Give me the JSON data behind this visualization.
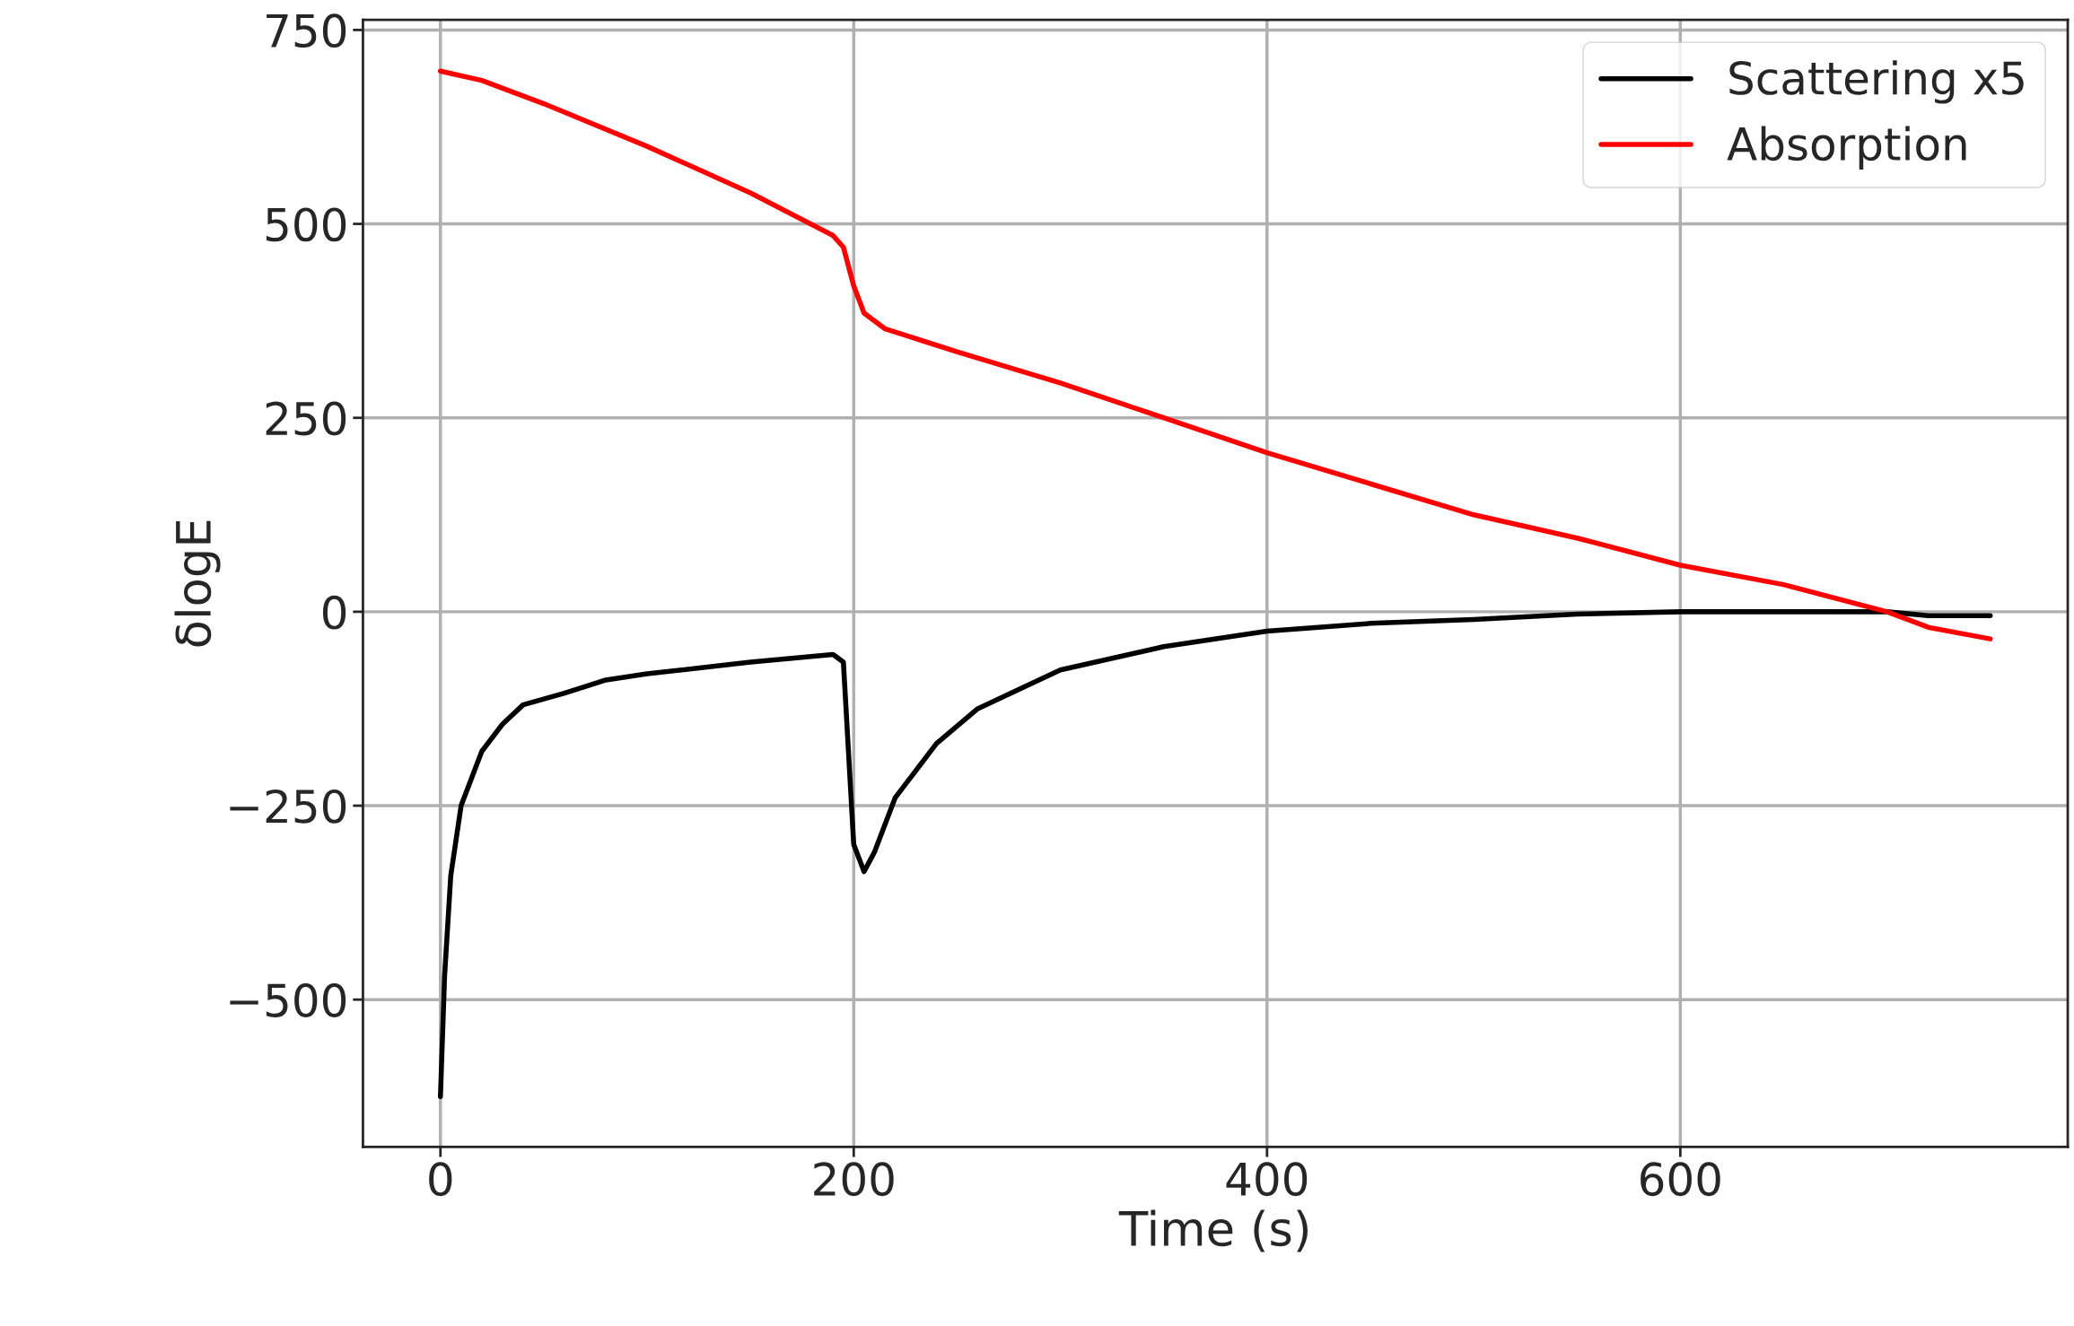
{
  "chart_data": {
    "type": "line",
    "xlabel": "Time (s)",
    "ylabel": "δlogE",
    "xlim": [
      -37.5,
      787.5
    ],
    "ylim": [
      -690,
      763
    ],
    "xticks": [
      0,
      200,
      400,
      600
    ],
    "yticks": [
      {
        "value": -500,
        "label": "−500"
      },
      {
        "value": -250,
        "label": "−250"
      },
      0,
      250,
      500,
      750
    ],
    "grid": true,
    "legend": "top right",
    "line_style": "solid",
    "marker": "none",
    "series": [
      {
        "name": "Scattering x5",
        "color": "#000000",
        "x": [
          0,
          2,
          5,
          10,
          20,
          30,
          40,
          60,
          80,
          100,
          150,
          190,
          195,
          200,
          205,
          210,
          220,
          240,
          260,
          300,
          350,
          400,
          450,
          500,
          550,
          600,
          650,
          700,
          720,
          750
        ],
        "values": [
          -625,
          -470,
          -340,
          -250,
          -180,
          -145,
          -120,
          -105,
          -88,
          -80,
          -65,
          -55,
          -65,
          -300,
          -335,
          -310,
          -240,
          -170,
          -125,
          -75,
          -45,
          -25,
          -15,
          -10,
          -3,
          0,
          0,
          0,
          -5,
          -5
        ]
      },
      {
        "name": "Absorption",
        "color": "#ff0000",
        "x": [
          0,
          20,
          50,
          100,
          150,
          190,
          195,
          200,
          205,
          215,
          250,
          300,
          350,
          400,
          450,
          500,
          550,
          600,
          650,
          700,
          720,
          750
        ],
        "values": [
          697,
          685,
          655,
          600,
          540,
          485,
          470,
          420,
          385,
          365,
          335,
          295,
          250,
          205,
          165,
          125,
          95,
          60,
          35,
          0,
          -20,
          -35
        ]
      }
    ]
  }
}
